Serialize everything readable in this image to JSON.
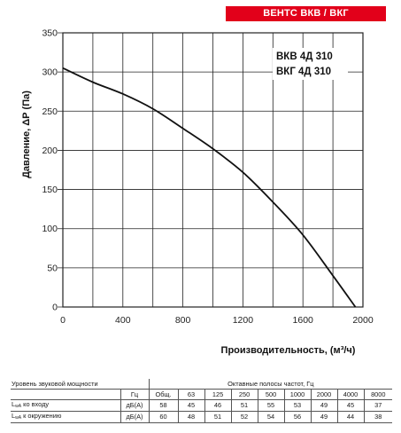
{
  "header": {
    "series_label": "ВЕНТС ВКВ / ВКГ",
    "badge_color": "#e2001a"
  },
  "chart_data": {
    "type": "line",
    "xlabel": "Производительность, (м³/ч)",
    "ylabel": "Давление, ΔР (Па)",
    "xlim": [
      0,
      2000
    ],
    "ylim": [
      0,
      350
    ],
    "x_ticks": [
      "0",
      "400",
      "800",
      "1200",
      "1600",
      "2000"
    ],
    "y_ticks": [
      "0",
      "50",
      "100",
      "150",
      "200",
      "250",
      "300",
      "350"
    ],
    "grid": true,
    "series": [
      {
        "name": "ВКВ 4Д 310 / ВКГ 4Д 310",
        "x": [
          0,
          200,
          400,
          600,
          800,
          1000,
          1200,
          1400,
          1600,
          1800,
          1950
        ],
        "y": [
          305,
          287,
          272,
          253,
          228,
          202,
          172,
          134,
          92,
          40,
          0
        ]
      }
    ],
    "annotations": [
      "ВКВ 4Д 310",
      "ВКГ 4Д 310"
    ]
  },
  "sound_table": {
    "title": "Уровень звуковой мощности",
    "bands_header": "Октавные полосы частот, Гц",
    "hz_label": "Гц",
    "columns": [
      "Общ.",
      "63",
      "125",
      "250",
      "500",
      "1000",
      "2000",
      "4000",
      "8000"
    ],
    "rows": [
      {
        "prefix": "L",
        "sub": "wA",
        "label": " ко входу",
        "unit": "дБ(А)",
        "values": [
          "58",
          "45",
          "46",
          "51",
          "55",
          "53",
          "49",
          "45",
          "37"
        ]
      },
      {
        "prefix": "L",
        "sub": "wA",
        "label": " к окружению",
        "unit": "дБ(А)",
        "values": [
          "60",
          "48",
          "51",
          "52",
          "54",
          "56",
          "49",
          "44",
          "38"
        ]
      }
    ]
  }
}
